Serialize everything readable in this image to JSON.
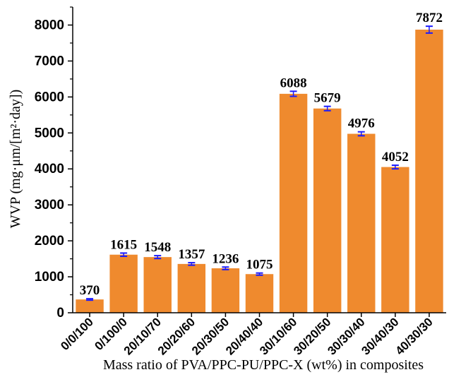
{
  "chart_data": {
    "type": "bar",
    "categories": [
      "0/0/100",
      "0/100/0",
      "20/10/70",
      "20/20/60",
      "20/30/50",
      "20/40/40",
      "30/10/60",
      "30/20/50",
      "30/30/40",
      "30/40/30",
      "40/30/30"
    ],
    "values": [
      370,
      1615,
      1548,
      1357,
      1236,
      1075,
      6088,
      5679,
      4976,
      4052,
      7872
    ],
    "data_labels": [
      "370",
      "1615",
      "1548",
      "1357",
      "1236",
      "1075",
      "6088",
      "5679",
      "4976",
      "4052",
      "7872"
    ],
    "errors": [
      20,
      45,
      40,
      35,
      35,
      30,
      70,
      60,
      55,
      50,
      95
    ],
    "xlabel": "Mass ratio of PVA/PPC-PU/PPC-X (wt%) in composites",
    "ylabel": "WVP (mg·μm/[m²·day])",
    "ylim": [
      0,
      8500
    ],
    "yticks": [
      0,
      1000,
      2000,
      3000,
      4000,
      5000,
      6000,
      7000,
      8000
    ],
    "ytick_labels": [
      "0",
      "1000",
      "2000",
      "3000",
      "4000",
      "5000",
      "6000",
      "7000",
      "8000"
    ],
    "grid": false,
    "colors": {
      "bar": "#ef8a2e",
      "error_bar": "#1a1aff",
      "axis": "#000000"
    }
  }
}
